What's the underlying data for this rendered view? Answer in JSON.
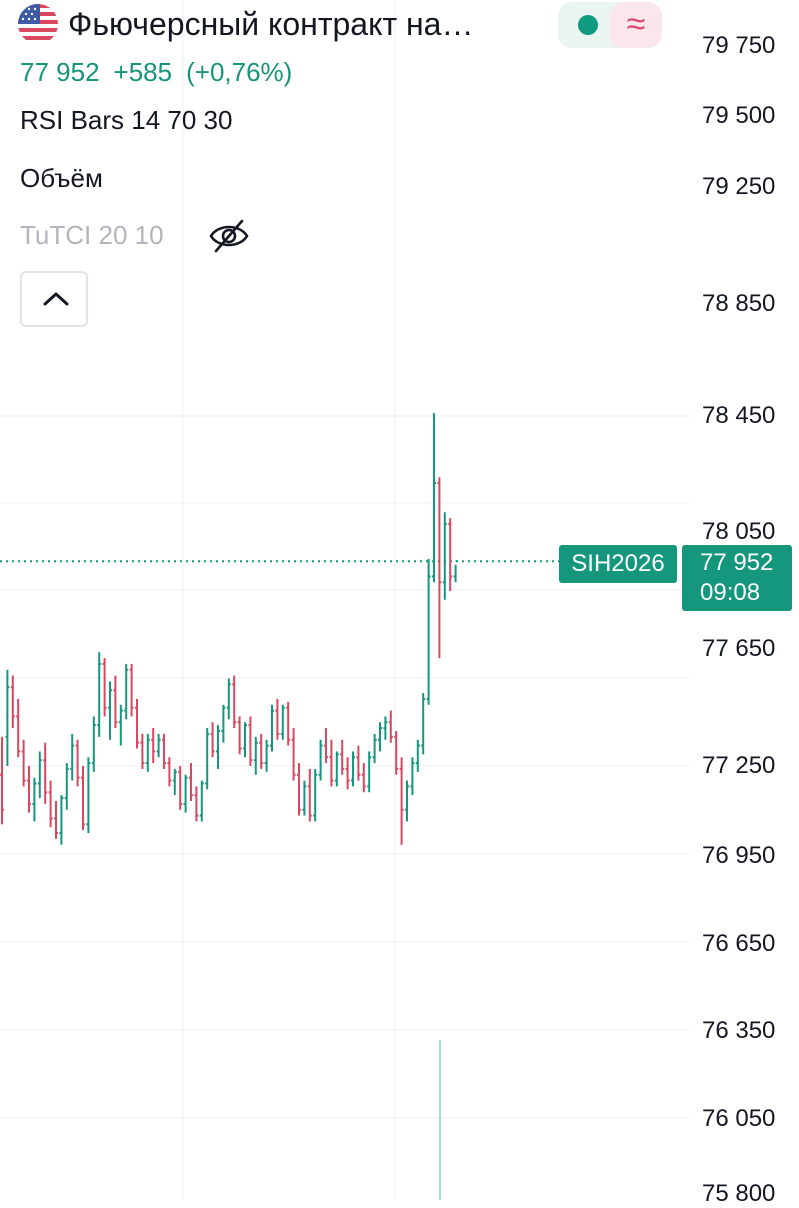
{
  "header": {
    "title": "Фьючерсный контракт на…",
    "price": "77 952",
    "change": "+585",
    "change_pct": "(+0,76%)"
  },
  "indicators": [
    {
      "label": "RSI Bars 14 70 30",
      "hidden": false
    },
    {
      "label": "Объём",
      "hidden": false
    },
    {
      "label": "TuTCI 20 10",
      "hidden": true
    }
  ],
  "badge": {
    "approx_symbol": "≈",
    "status_color": "#0e9b80",
    "approx_color": "#d9486a"
  },
  "colors": {
    "up": "#15977e",
    "down": "#d9485f",
    "price_line": "#15977e",
    "grid": "#eceff4"
  },
  "axis_labels": [
    "79 750",
    "79 500",
    "79 250",
    "78 850",
    "78 450",
    "78 050",
    "77 650",
    "77 250",
    "76 950",
    "76 650",
    "76 350",
    "76 050",
    "75 800"
  ],
  "price_tag": {
    "symbol": "SIH2026",
    "price": "77 952",
    "time": "09:08"
  },
  "chart_data": {
    "type": "candlestick",
    "symbol": "SIH2026",
    "last_price": 77952,
    "ylim": [
      75800,
      79850
    ],
    "bars": [
      [
        77220,
        77350,
        77050,
        77100
      ],
      [
        77350,
        77580,
        77250,
        77520
      ],
      [
        77520,
        77560,
        77380,
        77420
      ],
      [
        77420,
        77480,
        77280,
        77300
      ],
      [
        77300,
        77340,
        77180,
        77200
      ],
      [
        77200,
        77250,
        77090,
        77120
      ],
      [
        77120,
        77210,
        77060,
        77190
      ],
      [
        77190,
        77300,
        77140,
        77270
      ],
      [
        77270,
        77330,
        77120,
        77160
      ],
      [
        77160,
        77200,
        77040,
        77070
      ],
      [
        77070,
        77130,
        77000,
        77020
      ],
      [
        77020,
        77150,
        76980,
        77140
      ],
      [
        77140,
        77260,
        77100,
        77240
      ],
      [
        77240,
        77360,
        77200,
        77320
      ],
      [
        77320,
        77340,
        77180,
        77210
      ],
      [
        77210,
        77250,
        77030,
        77050
      ],
      [
        77050,
        77280,
        77020,
        77260
      ],
      [
        77260,
        77420,
        77230,
        77390
      ],
      [
        77390,
        77640,
        77350,
        77600
      ],
      [
        77600,
        77620,
        77420,
        77450
      ],
      [
        77450,
        77540,
        77340,
        77510
      ],
      [
        77510,
        77560,
        77380,
        77400
      ],
      [
        77400,
        77460,
        77320,
        77440
      ],
      [
        77440,
        77600,
        77410,
        77580
      ],
      [
        77580,
        77600,
        77420,
        77450
      ],
      [
        77450,
        77480,
        77310,
        77330
      ],
      [
        77330,
        77360,
        77240,
        77260
      ],
      [
        77260,
        77360,
        77230,
        77340
      ],
      [
        77340,
        77380,
        77260,
        77300
      ],
      [
        77300,
        77360,
        77280,
        77340
      ],
      [
        77340,
        77360,
        77240,
        77260
      ],
      [
        77260,
        77280,
        77180,
        77200
      ],
      [
        77200,
        77240,
        77150,
        77230
      ],
      [
        77230,
        77250,
        77100,
        77120
      ],
      [
        77120,
        77220,
        77090,
        77210
      ],
      [
        77210,
        77260,
        77130,
        77150
      ],
      [
        77150,
        77180,
        77060,
        77080
      ],
      [
        77080,
        77200,
        77060,
        77190
      ],
      [
        77190,
        77380,
        77170,
        77360
      ],
      [
        77360,
        77400,
        77280,
        77300
      ],
      [
        77300,
        77390,
        77240,
        77370
      ],
      [
        77370,
        77460,
        77330,
        77450
      ],
      [
        77450,
        77550,
        77410,
        77530
      ],
      [
        77530,
        77560,
        77380,
        77400
      ],
      [
        77400,
        77420,
        77290,
        77310
      ],
      [
        77310,
        77400,
        77280,
        77390
      ],
      [
        77390,
        77420,
        77250,
        77270
      ],
      [
        77270,
        77350,
        77220,
        77330
      ],
      [
        77330,
        77360,
        77240,
        77260
      ],
      [
        77260,
        77340,
        77230,
        77320
      ],
      [
        77320,
        77460,
        77300,
        77440
      ],
      [
        77440,
        77480,
        77340,
        77360
      ],
      [
        77360,
        77460,
        77340,
        77450
      ],
      [
        77450,
        77470,
        77320,
        77340
      ],
      [
        77340,
        77380,
        77200,
        77220
      ],
      [
        77220,
        77260,
        77080,
        77100
      ],
      [
        77100,
        77200,
        77080,
        77180
      ],
      [
        77180,
        77240,
        77060,
        77080
      ],
      [
        77080,
        77240,
        77060,
        77220
      ],
      [
        77220,
        77340,
        77200,
        77320
      ],
      [
        77320,
        77380,
        77260,
        77280
      ],
      [
        77280,
        77340,
        77180,
        77200
      ],
      [
        77200,
        77300,
        77180,
        77290
      ],
      [
        77290,
        77340,
        77220,
        77240
      ],
      [
        77240,
        77280,
        77170,
        77200
      ],
      [
        77200,
        77300,
        77180,
        77280
      ],
      [
        77280,
        77320,
        77200,
        77220
      ],
      [
        77220,
        77260,
        77160,
        77180
      ],
      [
        77180,
        77300,
        77160,
        77280
      ],
      [
        77280,
        77360,
        77260,
        77340
      ],
      [
        77340,
        77400,
        77300,
        77380
      ],
      [
        77380,
        77420,
        77340,
        77400
      ],
      [
        77400,
        77440,
        77330,
        77350
      ],
      [
        77350,
        77370,
        77220,
        77240
      ],
      [
        77240,
        77280,
        76980,
        77100
      ],
      [
        77100,
        77200,
        77060,
        77180
      ],
      [
        77180,
        77280,
        77150,
        77260
      ],
      [
        77260,
        77340,
        77230,
        77320
      ],
      [
        77320,
        77500,
        77290,
        77480
      ],
      [
        77480,
        77960,
        77460,
        77900
      ],
      [
        77900,
        78460,
        77880,
        78220
      ],
      [
        78220,
        78240,
        77620,
        77880
      ],
      [
        77880,
        78120,
        77820,
        78080
      ],
      [
        78080,
        78100,
        77850,
        77900
      ],
      [
        77900,
        77940,
        77880,
        77952
      ]
    ]
  }
}
